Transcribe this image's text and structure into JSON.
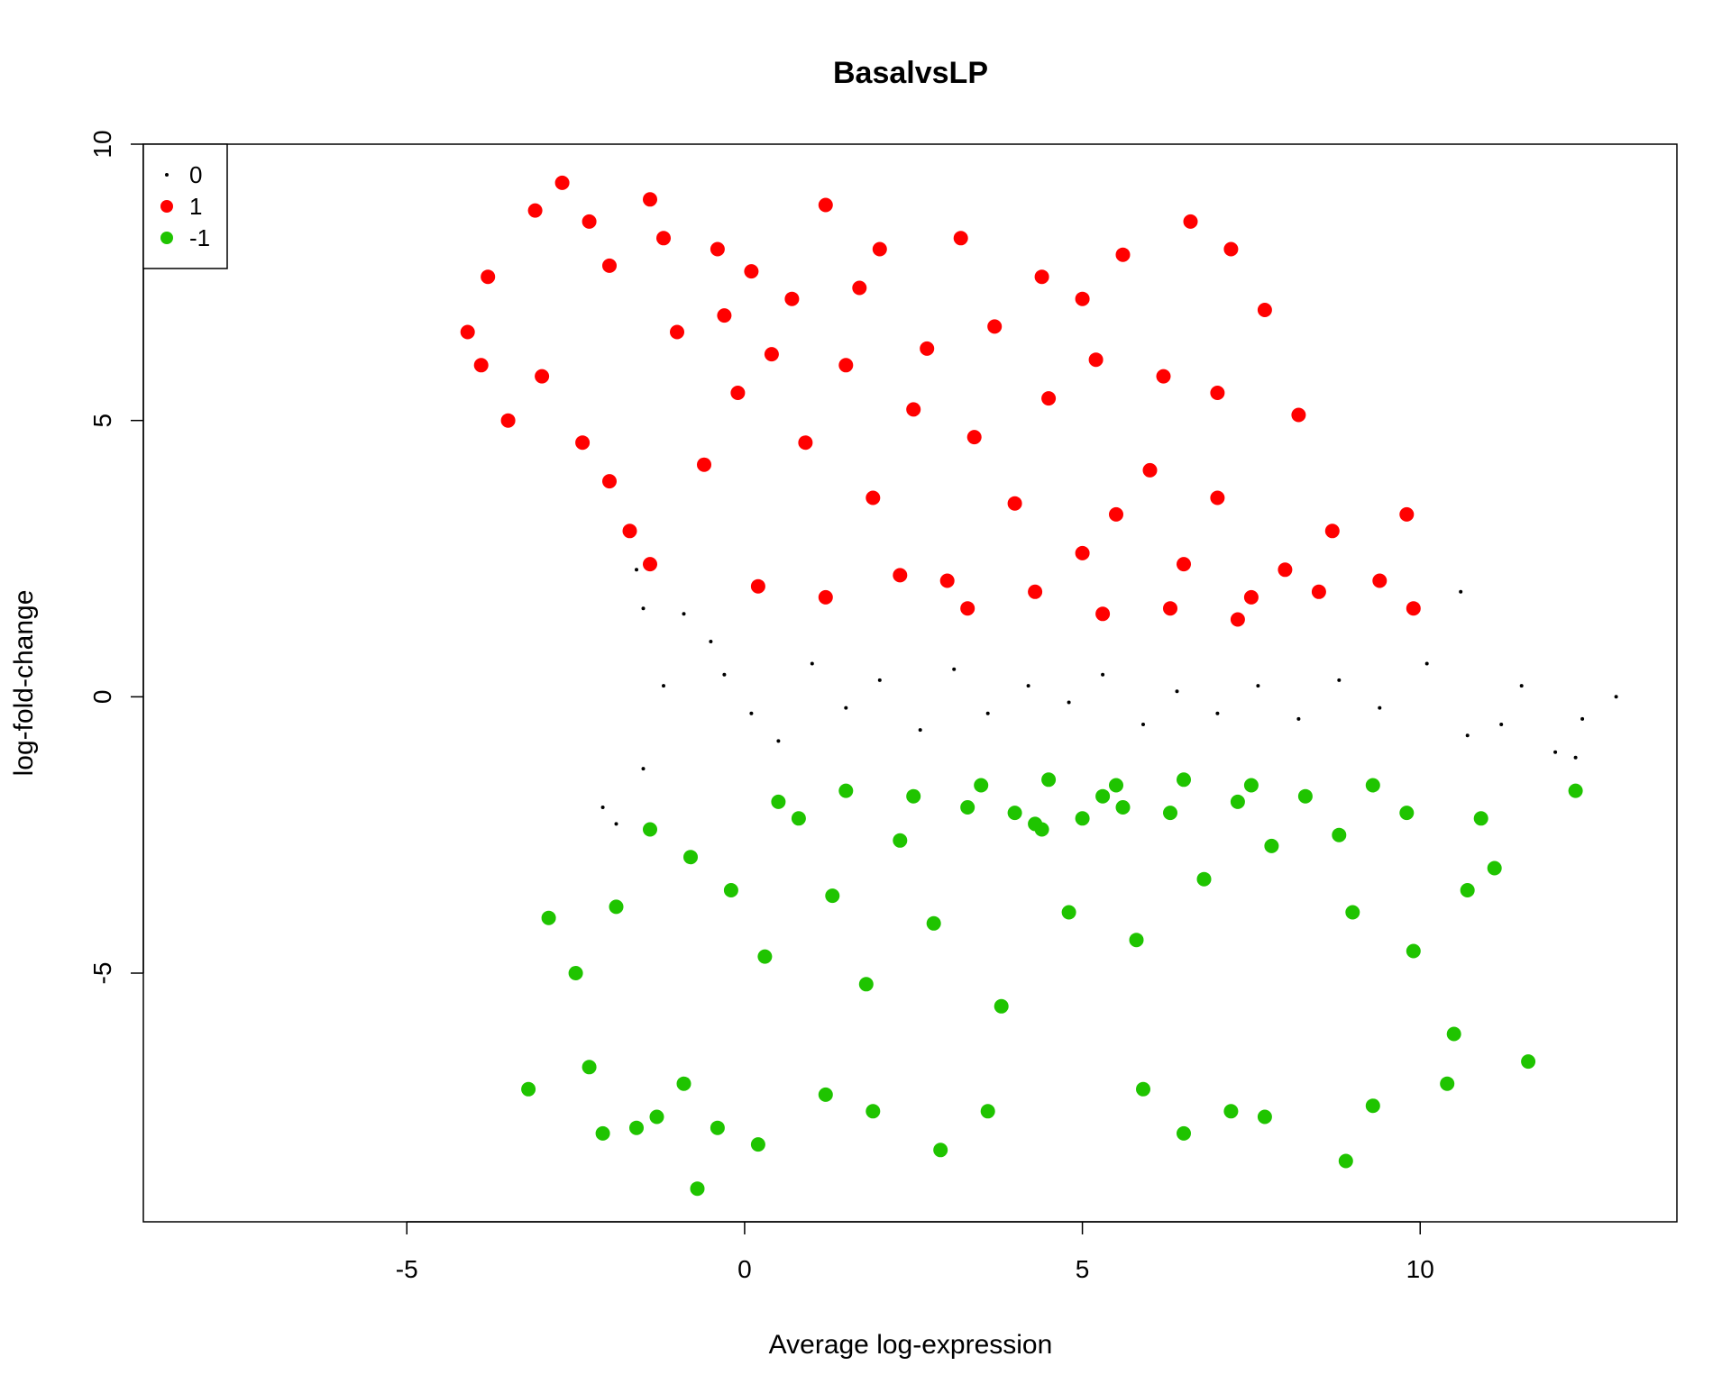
{
  "chart_data": {
    "type": "scatter",
    "title": "BasalvsLP",
    "xlabel": "Average log-expression",
    "ylabel": "log-fold-change",
    "xlim": [
      -8.9,
      13.8
    ],
    "ylim": [
      -9.5,
      10
    ],
    "xticks": [
      -5,
      0,
      5,
      10
    ],
    "yticks": [
      -5,
      0,
      5,
      10
    ],
    "grid": false,
    "legend_position": "top-left",
    "legend": [
      {
        "label": "0",
        "color": "#000000",
        "marker": "small-dot"
      },
      {
        "label": "1",
        "color": "#ff0000",
        "marker": "filled-circle"
      },
      {
        "label": "-1",
        "color": "#1fc400",
        "marker": "filled-circle"
      }
    ],
    "series": [
      {
        "name": "0",
        "color": "#000000",
        "marker": "small-dot",
        "points": [
          [
            -1.6,
            2.3
          ],
          [
            -1.5,
            1.6
          ],
          [
            -1.2,
            0.2
          ],
          [
            -1.5,
            -1.3
          ],
          [
            -1.9,
            -2.3
          ],
          [
            -2.1,
            -2.0
          ],
          [
            -0.9,
            1.5
          ],
          [
            -0.5,
            1.0
          ],
          [
            -0.3,
            0.4
          ],
          [
            0.1,
            -0.3
          ],
          [
            0.5,
            -0.8
          ],
          [
            1.0,
            0.6
          ],
          [
            1.5,
            -0.2
          ],
          [
            2.0,
            0.3
          ],
          [
            2.6,
            -0.6
          ],
          [
            3.1,
            0.5
          ],
          [
            3.6,
            -0.3
          ],
          [
            4.2,
            0.2
          ],
          [
            4.8,
            -0.1
          ],
          [
            5.3,
            0.4
          ],
          [
            5.9,
            -0.5
          ],
          [
            6.4,
            0.1
          ],
          [
            7.0,
            -0.3
          ],
          [
            7.6,
            0.2
          ],
          [
            8.2,
            -0.4
          ],
          [
            8.8,
            0.3
          ],
          [
            9.4,
            -0.2
          ],
          [
            10.1,
            0.6
          ],
          [
            10.7,
            -0.7
          ],
          [
            11.2,
            -0.5
          ],
          [
            11.5,
            0.2
          ],
          [
            12.0,
            -1.0
          ],
          [
            12.4,
            -0.4
          ],
          [
            12.3,
            -1.1
          ],
          [
            12.9,
            0.0
          ],
          [
            10.6,
            1.9
          ]
        ]
      },
      {
        "name": "1",
        "color": "#ff0000",
        "marker": "filled-circle",
        "points": [
          [
            -4.1,
            6.6
          ],
          [
            -3.8,
            7.6
          ],
          [
            -3.9,
            6.0
          ],
          [
            -3.5,
            5.0
          ],
          [
            -3.1,
            8.8
          ],
          [
            -2.7,
            9.3
          ],
          [
            -2.3,
            8.6
          ],
          [
            -2.0,
            7.8
          ],
          [
            -1.4,
            9.0
          ],
          [
            -1.2,
            8.3
          ],
          [
            -0.4,
            8.1
          ],
          [
            0.1,
            7.7
          ],
          [
            1.2,
            8.9
          ],
          [
            2.0,
            8.1
          ],
          [
            3.2,
            8.3
          ],
          [
            3.7,
            6.7
          ],
          [
            4.4,
            7.6
          ],
          [
            5.0,
            7.2
          ],
          [
            5.6,
            8.0
          ],
          [
            6.6,
            8.6
          ],
          [
            7.2,
            8.1
          ],
          [
            7.7,
            7.0
          ],
          [
            8.2,
            5.1
          ],
          [
            9.8,
            3.3
          ],
          [
            9.9,
            1.6
          ],
          [
            9.4,
            2.1
          ],
          [
            8.7,
            3.0
          ],
          [
            -3.0,
            5.8
          ],
          [
            -2.4,
            4.6
          ],
          [
            -2.0,
            3.9
          ],
          [
            -1.7,
            3.0
          ],
          [
            -1.4,
            2.4
          ],
          [
            -0.6,
            4.2
          ],
          [
            -0.1,
            5.5
          ],
          [
            0.4,
            6.2
          ],
          [
            0.9,
            4.6
          ],
          [
            1.5,
            6.0
          ],
          [
            1.9,
            3.6
          ],
          [
            2.5,
            5.2
          ],
          [
            3.0,
            2.1
          ],
          [
            3.4,
            4.7
          ],
          [
            4.0,
            3.5
          ],
          [
            4.5,
            5.4
          ],
          [
            5.0,
            2.6
          ],
          [
            5.5,
            3.3
          ],
          [
            6.0,
            4.1
          ],
          [
            6.5,
            2.4
          ],
          [
            7.0,
            3.6
          ],
          [
            7.5,
            1.8
          ],
          [
            8.0,
            2.3
          ],
          [
            8.5,
            1.9
          ],
          [
            0.2,
            2.0
          ],
          [
            1.2,
            1.8
          ],
          [
            2.3,
            2.2
          ],
          [
            3.3,
            1.6
          ],
          [
            4.3,
            1.9
          ],
          [
            5.3,
            1.5
          ],
          [
            6.3,
            1.6
          ],
          [
            7.3,
            1.4
          ],
          [
            -1.0,
            6.6
          ],
          [
            -0.3,
            6.9
          ],
          [
            0.7,
            7.2
          ],
          [
            1.7,
            7.4
          ],
          [
            2.7,
            6.3
          ],
          [
            5.2,
            6.1
          ],
          [
            6.2,
            5.8
          ],
          [
            7.0,
            5.5
          ]
        ]
      },
      {
        "name": "-1",
        "color": "#1fc400",
        "marker": "filled-circle",
        "points": [
          [
            -3.2,
            -7.1
          ],
          [
            -2.9,
            -4.0
          ],
          [
            -2.3,
            -6.7
          ],
          [
            -2.1,
            -7.9
          ],
          [
            -1.6,
            -7.8
          ],
          [
            -1.3,
            -7.6
          ],
          [
            -0.9,
            -7.0
          ],
          [
            -0.7,
            -8.9
          ],
          [
            -0.4,
            -7.8
          ],
          [
            0.2,
            -8.1
          ],
          [
            1.2,
            -7.2
          ],
          [
            1.9,
            -7.5
          ],
          [
            2.9,
            -8.2
          ],
          [
            3.6,
            -7.5
          ],
          [
            5.9,
            -7.1
          ],
          [
            6.5,
            -7.9
          ],
          [
            7.2,
            -7.5
          ],
          [
            7.7,
            -7.6
          ],
          [
            8.9,
            -8.4
          ],
          [
            9.3,
            -7.4
          ],
          [
            10.4,
            -7.0
          ],
          [
            11.6,
            -6.6
          ],
          [
            10.5,
            -6.1
          ],
          [
            11.1,
            -3.1
          ],
          [
            10.7,
            -3.5
          ],
          [
            12.3,
            -1.7
          ],
          [
            10.9,
            -2.2
          ],
          [
            9.8,
            -2.1
          ],
          [
            9.9,
            -4.6
          ],
          [
            9.0,
            -3.9
          ],
          [
            -2.5,
            -5.0
          ],
          [
            -1.9,
            -3.8
          ],
          [
            -1.4,
            -2.4
          ],
          [
            -0.8,
            -2.9
          ],
          [
            -0.2,
            -3.5
          ],
          [
            0.3,
            -4.7
          ],
          [
            0.8,
            -2.2
          ],
          [
            1.3,
            -3.6
          ],
          [
            1.8,
            -5.2
          ],
          [
            2.3,
            -2.6
          ],
          [
            2.8,
            -4.1
          ],
          [
            3.3,
            -2.0
          ],
          [
            3.8,
            -5.6
          ],
          [
            4.3,
            -2.3
          ],
          [
            4.8,
            -3.9
          ],
          [
            5.3,
            -1.8
          ],
          [
            5.8,
            -4.4
          ],
          [
            6.3,
            -2.1
          ],
          [
            6.8,
            -3.3
          ],
          [
            7.3,
            -1.9
          ],
          [
            7.8,
            -2.7
          ],
          [
            8.3,
            -1.8
          ],
          [
            8.8,
            -2.5
          ],
          [
            9.3,
            -1.6
          ],
          [
            0.5,
            -1.9
          ],
          [
            1.5,
            -1.7
          ],
          [
            2.5,
            -1.8
          ],
          [
            3.5,
            -1.6
          ],
          [
            4.5,
            -1.5
          ],
          [
            5.5,
            -1.6
          ],
          [
            6.5,
            -1.5
          ],
          [
            7.5,
            -1.6
          ],
          [
            4.4,
            -2.4
          ],
          [
            5.0,
            -2.2
          ],
          [
            5.6,
            -2.0
          ],
          [
            4.0,
            -2.1
          ]
        ]
      }
    ]
  }
}
